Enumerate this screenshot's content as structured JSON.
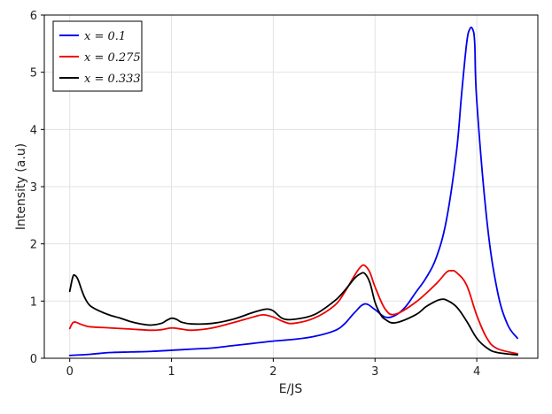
{
  "chart_data": {
    "type": "line",
    "xlabel": "E/JS",
    "ylabel": "Intensity (a.u)",
    "xlim": [
      -0.25,
      4.6
    ],
    "ylim": [
      0,
      6
    ],
    "xticks": [
      0,
      1,
      2,
      3,
      4
    ],
    "yticks": [
      0,
      1,
      2,
      3,
      4,
      5,
      6
    ],
    "grid": true,
    "legend_position": "top-left",
    "series": [
      {
        "name": "x = 0.1",
        "color": "#0000ee",
        "x": [
          0.0,
          0.2,
          0.4,
          0.6,
          0.8,
          1.0,
          1.2,
          1.4,
          1.6,
          1.8,
          2.0,
          2.2,
          2.4,
          2.6,
          2.7,
          2.8,
          2.9,
          3.0,
          3.1,
          3.2,
          3.3,
          3.4,
          3.5,
          3.6,
          3.7,
          3.8,
          3.85,
          3.9,
          3.93,
          3.96,
          3.98,
          4.0,
          4.1,
          4.2,
          4.3,
          4.4
        ],
        "y": [
          0.05,
          0.07,
          0.1,
          0.11,
          0.12,
          0.14,
          0.16,
          0.18,
          0.22,
          0.26,
          0.3,
          0.33,
          0.38,
          0.48,
          0.6,
          0.8,
          0.95,
          0.85,
          0.72,
          0.75,
          0.9,
          1.15,
          1.4,
          1.75,
          2.4,
          3.6,
          4.6,
          5.5,
          5.75,
          5.75,
          5.5,
          4.5,
          2.4,
          1.2,
          0.6,
          0.35
        ]
      },
      {
        "name": "x = 0.275",
        "color": "#ee0000",
        "x": [
          0.0,
          0.03,
          0.06,
          0.1,
          0.15,
          0.2,
          0.4,
          0.6,
          0.8,
          0.9,
          1.0,
          1.1,
          1.2,
          1.4,
          1.6,
          1.8,
          1.9,
          2.0,
          2.1,
          2.2,
          2.4,
          2.6,
          2.7,
          2.8,
          2.86,
          2.9,
          2.95,
          3.0,
          3.1,
          3.2,
          3.4,
          3.6,
          3.7,
          3.75,
          3.8,
          3.9,
          4.0,
          4.1,
          4.2,
          4.4
        ],
        "y": [
          0.52,
          0.62,
          0.63,
          0.6,
          0.57,
          0.55,
          0.53,
          0.51,
          0.49,
          0.5,
          0.53,
          0.51,
          0.49,
          0.53,
          0.62,
          0.72,
          0.76,
          0.72,
          0.64,
          0.61,
          0.7,
          0.92,
          1.15,
          1.45,
          1.6,
          1.62,
          1.5,
          1.25,
          0.86,
          0.77,
          0.98,
          1.3,
          1.5,
          1.53,
          1.5,
          1.28,
          0.75,
          0.35,
          0.17,
          0.08
        ]
      },
      {
        "name": "x = 0.333",
        "color": "#000000",
        "x": [
          0.0,
          0.03,
          0.05,
          0.08,
          0.12,
          0.15,
          0.2,
          0.3,
          0.4,
          0.5,
          0.6,
          0.7,
          0.8,
          0.9,
          0.95,
          1.0,
          1.05,
          1.1,
          1.2,
          1.4,
          1.6,
          1.8,
          1.9,
          1.95,
          2.0,
          2.05,
          2.1,
          2.2,
          2.4,
          2.6,
          2.7,
          2.8,
          2.86,
          2.9,
          2.95,
          3.0,
          3.05,
          3.1,
          3.2,
          3.4,
          3.5,
          3.6,
          3.65,
          3.7,
          3.8,
          3.9,
          4.0,
          4.1,
          4.2,
          4.4
        ],
        "y": [
          1.17,
          1.42,
          1.45,
          1.38,
          1.18,
          1.05,
          0.92,
          0.82,
          0.75,
          0.7,
          0.64,
          0.6,
          0.58,
          0.61,
          0.66,
          0.7,
          0.68,
          0.63,
          0.6,
          0.61,
          0.68,
          0.8,
          0.85,
          0.86,
          0.83,
          0.75,
          0.69,
          0.68,
          0.76,
          1.0,
          1.18,
          1.4,
          1.48,
          1.48,
          1.32,
          0.98,
          0.78,
          0.68,
          0.62,
          0.76,
          0.9,
          1.0,
          1.03,
          1.02,
          0.9,
          0.65,
          0.35,
          0.18,
          0.1,
          0.06
        ]
      }
    ]
  }
}
